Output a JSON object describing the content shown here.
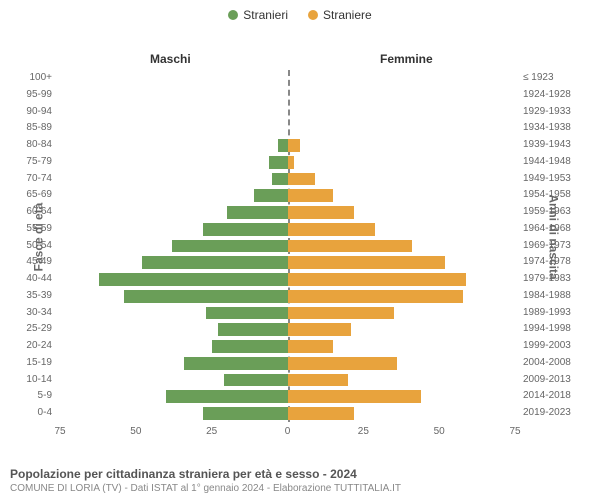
{
  "legend": {
    "male": {
      "label": "Stranieri",
      "color": "#6a9e58"
    },
    "female": {
      "label": "Straniere",
      "color": "#e8a33d"
    }
  },
  "headers": {
    "male": "Maschi",
    "female": "Femmine"
  },
  "axis_titles": {
    "left": "Fasce di età",
    "right": "Anni di nascita"
  },
  "chart": {
    "type": "population-pyramid",
    "x_max": 75,
    "x_ticks": [
      "75",
      "50",
      "25",
      "0",
      "25",
      "50",
      "75"
    ],
    "background_color": "#ffffff",
    "bar_border": "none",
    "male_color": "#6a9e58",
    "female_color": "#e8a33d",
    "rows": [
      {
        "age": "100+",
        "birth": "≤ 1923",
        "m": 0,
        "f": 0
      },
      {
        "age": "95-99",
        "birth": "1924-1928",
        "m": 0,
        "f": 0
      },
      {
        "age": "90-94",
        "birth": "1929-1933",
        "m": 0,
        "f": 0
      },
      {
        "age": "85-89",
        "birth": "1934-1938",
        "m": 0,
        "f": 0
      },
      {
        "age": "80-84",
        "birth": "1939-1943",
        "m": 3,
        "f": 4
      },
      {
        "age": "75-79",
        "birth": "1944-1948",
        "m": 6,
        "f": 2
      },
      {
        "age": "70-74",
        "birth": "1949-1953",
        "m": 5,
        "f": 9
      },
      {
        "age": "65-69",
        "birth": "1954-1958",
        "m": 11,
        "f": 15
      },
      {
        "age": "60-64",
        "birth": "1959-1963",
        "m": 20,
        "f": 22
      },
      {
        "age": "55-59",
        "birth": "1964-1968",
        "m": 28,
        "f": 29
      },
      {
        "age": "50-54",
        "birth": "1969-1973",
        "m": 38,
        "f": 41
      },
      {
        "age": "45-49",
        "birth": "1974-1978",
        "m": 48,
        "f": 52
      },
      {
        "age": "40-44",
        "birth": "1979-1983",
        "m": 62,
        "f": 59
      },
      {
        "age": "35-39",
        "birth": "1984-1988",
        "m": 54,
        "f": 58
      },
      {
        "age": "30-34",
        "birth": "1989-1993",
        "m": 27,
        "f": 35
      },
      {
        "age": "25-29",
        "birth": "1994-1998",
        "m": 23,
        "f": 21
      },
      {
        "age": "20-24",
        "birth": "1999-2003",
        "m": 25,
        "f": 15
      },
      {
        "age": "15-19",
        "birth": "2004-2008",
        "m": 34,
        "f": 36
      },
      {
        "age": "10-14",
        "birth": "2009-2013",
        "m": 21,
        "f": 20
      },
      {
        "age": "5-9",
        "birth": "2014-2018",
        "m": 40,
        "f": 44
      },
      {
        "age": "0-4",
        "birth": "2019-2023",
        "m": 28,
        "f": 22
      }
    ]
  },
  "footer": {
    "title": "Popolazione per cittadinanza straniera per età e sesso - 2024",
    "subtitle": "COMUNE DI LORIA (TV) - Dati ISTAT al 1° gennaio 2024 - Elaborazione TUTTITALIA.IT"
  }
}
